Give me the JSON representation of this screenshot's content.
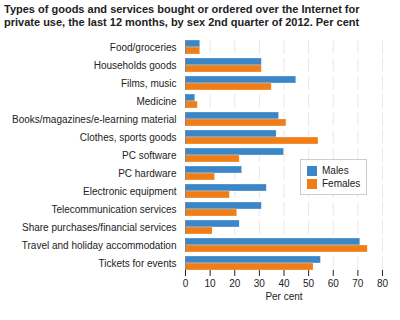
{
  "chart_data": {
    "type": "bar",
    "orientation": "horizontal",
    "title": "Types of goods and services bought or ordered over the Internet for private use, the last 12 months, by sex 2nd quarter of 2012. Per cent",
    "x_label": "Per cent",
    "categories": [
      "Food/groceries",
      "Households goods",
      "Films, music",
      "Medicine",
      "Books/magazines/e-learning material",
      "Clothes, sports goods",
      "PC software",
      "PC hardware",
      "Electronic equipment",
      "Telecommunication services",
      "Share purchases/financial services",
      "Travel and holiday accommodation",
      "Tickets for events"
    ],
    "series": [
      {
        "name": "Males",
        "color": "#3b86c6",
        "values": [
          6,
          31,
          45,
          4,
          38,
          37,
          40,
          23,
          33,
          31,
          22,
          71,
          55
        ]
      },
      {
        "name": "Females",
        "color": "#f07d16",
        "values": [
          6,
          31,
          35,
          5,
          41,
          54,
          22,
          12,
          18,
          21,
          11,
          74,
          52
        ]
      }
    ],
    "xlim": [
      0,
      80
    ],
    "xticks": [
      0,
      10,
      20,
      30,
      40,
      50,
      60,
      70,
      80
    ],
    "grid": true,
    "legend": "right"
  }
}
